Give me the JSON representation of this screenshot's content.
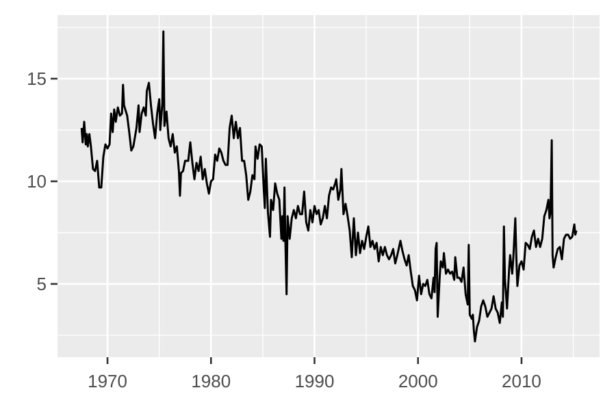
{
  "chart_data": {
    "type": "line",
    "color": "#000000",
    "grid": true,
    "xlim": [
      1965.17,
      2017.54
    ],
    "ylim": [
      1.43,
      18.1
    ],
    "xticks": [
      1970,
      1980,
      1990,
      2000,
      2010
    ],
    "yticks": [
      5,
      10,
      15
    ],
    "x_minor_ticks": [
      1975,
      1985,
      1995,
      2005,
      2015
    ],
    "y_minor_ticks": [
      2.5,
      7.5,
      12.5,
      17.5
    ],
    "x": [
      1967.5,
      1967.6,
      1967.75,
      1967.9,
      1968.0,
      1968.1,
      1968.25,
      1968.4,
      1968.6,
      1968.8,
      1969.0,
      1969.2,
      1969.4,
      1969.6,
      1969.8,
      1970.0,
      1970.2,
      1970.35,
      1970.5,
      1970.65,
      1970.8,
      1971.0,
      1971.2,
      1971.4,
      1971.5,
      1971.6,
      1971.9,
      1972.1,
      1972.3,
      1972.5,
      1972.8,
      1973.0,
      1973.1,
      1973.3,
      1973.5,
      1973.7,
      1973.8,
      1974.0,
      1974.2,
      1974.4,
      1974.6,
      1974.8,
      1975.0,
      1975.1,
      1975.3,
      1975.4,
      1975.5,
      1975.7,
      1975.9,
      1976.1,
      1976.3,
      1976.5,
      1976.7,
      1976.9,
      1977.0,
      1977.1,
      1977.3,
      1977.5,
      1977.8,
      1978.0,
      1978.2,
      1978.4,
      1978.6,
      1978.8,
      1979.0,
      1979.2,
      1979.4,
      1979.6,
      1979.8,
      1980.0,
      1980.2,
      1980.4,
      1980.6,
      1980.8,
      1981.0,
      1981.2,
      1981.4,
      1981.6,
      1981.8,
      1982.0,
      1982.2,
      1982.4,
      1982.6,
      1982.8,
      1983.0,
      1983.2,
      1983.4,
      1983.6,
      1983.8,
      1984.0,
      1984.2,
      1984.3,
      1984.5,
      1984.7,
      1984.9,
      1985.1,
      1985.2,
      1985.3,
      1985.5,
      1985.7,
      1985.8,
      1986.0,
      1986.2,
      1986.4,
      1986.6,
      1986.8,
      1986.9,
      1987.0,
      1987.1,
      1987.2,
      1987.3,
      1987.4,
      1987.6,
      1987.8,
      1988.0,
      1988.2,
      1988.4,
      1988.6,
      1988.8,
      1989.0,
      1989.2,
      1989.4,
      1989.6,
      1989.8,
      1990.0,
      1990.2,
      1990.4,
      1990.6,
      1990.8,
      1991.0,
      1991.2,
      1991.4,
      1991.6,
      1991.8,
      1992.0,
      1992.1,
      1992.3,
      1992.5,
      1992.6,
      1992.8,
      1993.0,
      1993.2,
      1993.4,
      1993.6,
      1993.8,
      1994.0,
      1994.2,
      1994.4,
      1994.6,
      1994.8,
      1995.0,
      1995.2,
      1995.4,
      1995.6,
      1995.8,
      1996.0,
      1996.2,
      1996.4,
      1996.6,
      1996.8,
      1997.0,
      1997.2,
      1997.4,
      1997.6,
      1997.8,
      1998.0,
      1998.3,
      1998.5,
      1998.7,
      1998.9,
      1999.1,
      1999.3,
      1999.5,
      1999.7,
      1999.9,
      2000.1,
      2000.3,
      2000.5,
      2000.7,
      2000.9,
      2001.1,
      2001.3,
      2001.5,
      2001.6,
      2001.7,
      2001.8,
      2001.9,
      2002.1,
      2002.2,
      2002.4,
      2002.5,
      2002.7,
      2002.9,
      2003.1,
      2003.3,
      2003.5,
      2003.6,
      2003.8,
      2004.0,
      2004.2,
      2004.4,
      2004.6,
      2004.8,
      2004.9,
      2005.0,
      2005.2,
      2005.3,
      2005.4,
      2005.5,
      2005.7,
      2005.9,
      2006.1,
      2006.3,
      2006.5,
      2006.7,
      2006.9,
      2007.1,
      2007.3,
      2007.5,
      2007.7,
      2007.9,
      2008.1,
      2008.2,
      2008.3,
      2008.4,
      2008.6,
      2008.8,
      2008.9,
      2009.1,
      2009.2,
      2009.4,
      2009.5,
      2009.6,
      2009.8,
      2010.0,
      2010.2,
      2010.4,
      2010.6,
      2010.8,
      2011.0,
      2011.2,
      2011.4,
      2011.6,
      2011.8,
      2012.0,
      2012.2,
      2012.4,
      2012.6,
      2012.7,
      2012.8,
      2012.92,
      2013.0,
      2013.1,
      2013.3,
      2013.5,
      2013.7,
      2013.9,
      2014.1,
      2014.3,
      2014.5,
      2014.7,
      2014.9,
      2015.0,
      2015.1,
      2015.2,
      2015.3
    ],
    "values": [
      12.6,
      11.9,
      12.9,
      11.8,
      12.3,
      11.7,
      12.3,
      11.7,
      10.6,
      10.5,
      11.0,
      9.7,
      9.7,
      11.2,
      11.8,
      11.6,
      11.8,
      13.3,
      12.4,
      13.5,
      12.9,
      13.6,
      13.2,
      13.3,
      14.7,
      13.7,
      13.2,
      12.4,
      11.5,
      11.7,
      12.6,
      13.7,
      12.4,
      13.3,
      13.6,
      13.2,
      14.4,
      14.8,
      13.7,
      12.8,
      12.1,
      13.3,
      14.0,
      12.5,
      13.8,
      17.3,
      12.7,
      13.4,
      12.1,
      11.7,
      12.3,
      11.4,
      11.7,
      10.5,
      9.3,
      10.4,
      10.5,
      11.0,
      11.0,
      11.9,
      10.9,
      10.1,
      10.9,
      10.5,
      11.2,
      10.1,
      10.6,
      9.9,
      9.4,
      10.0,
      10.1,
      11.3,
      11.0,
      11.6,
      11.4,
      11.0,
      10.8,
      10.8,
      12.6,
      13.2,
      12.1,
      12.9,
      12.1,
      12.6,
      11.0,
      11.0,
      10.3,
      9.1,
      9.5,
      10.3,
      10.1,
      11.7,
      11.1,
      11.8,
      11.7,
      9.6,
      8.7,
      11.1,
      8.5,
      7.3,
      9.1,
      8.6,
      9.9,
      9.4,
      9.1,
      7.2,
      8.3,
      7.1,
      9.7,
      6.8,
      4.5,
      8.3,
      7.2,
      8.2,
      8.6,
      8.2,
      8.8,
      8.4,
      8.4,
      9.5,
      8.0,
      7.6,
      8.6,
      8.0,
      8.8,
      8.4,
      8.6,
      7.9,
      8.2,
      8.8,
      8.2,
      9.3,
      9.7,
      9.6,
      9.9,
      10.1,
      9.1,
      9.6,
      10.6,
      8.4,
      8.9,
      8.3,
      7.6,
      6.3,
      8.2,
      6.4,
      7.5,
      6.5,
      7.1,
      6.7,
      7.3,
      7.8,
      6.8,
      7.1,
      6.7,
      7.0,
      6.1,
      6.8,
      6.4,
      6.8,
      6.4,
      6.2,
      6.4,
      6.7,
      6.0,
      6.4,
      7.1,
      6.6,
      6.2,
      5.9,
      6.4,
      5.6,
      4.9,
      4.7,
      4.2,
      5.4,
      4.5,
      5.0,
      4.9,
      5.2,
      4.5,
      4.3,
      5.3,
      4.6,
      6.7,
      7.0,
      3.4,
      5.4,
      6.1,
      5.8,
      6.5,
      5.5,
      5.7,
      5.5,
      5.6,
      5.2,
      6.3,
      5.3,
      5.3,
      5.1,
      5.8,
      4.5,
      4.0,
      6.9,
      3.5,
      3.3,
      3.5,
      2.7,
      2.2,
      2.9,
      3.2,
      3.9,
      4.2,
      3.9,
      3.4,
      3.6,
      3.8,
      4.4,
      3.8,
      3.6,
      3.1,
      4.1,
      3.4,
      7.8,
      5.2,
      3.8,
      5.7,
      6.4,
      5.5,
      6.2,
      8.2,
      6.3,
      4.9,
      5.9,
      6.1,
      5.7,
      7.0,
      6.9,
      6.7,
      7.3,
      7.6,
      6.8,
      7.2,
      6.8,
      7.2,
      8.3,
      8.6,
      9.1,
      8.2,
      8.5,
      12.0,
      6.4,
      5.8,
      6.3,
      6.7,
      6.8,
      6.2,
      7.2,
      7.4,
      7.4,
      7.2,
      7.3,
      7.6,
      7.9,
      7.4,
      7.6
    ]
  }
}
